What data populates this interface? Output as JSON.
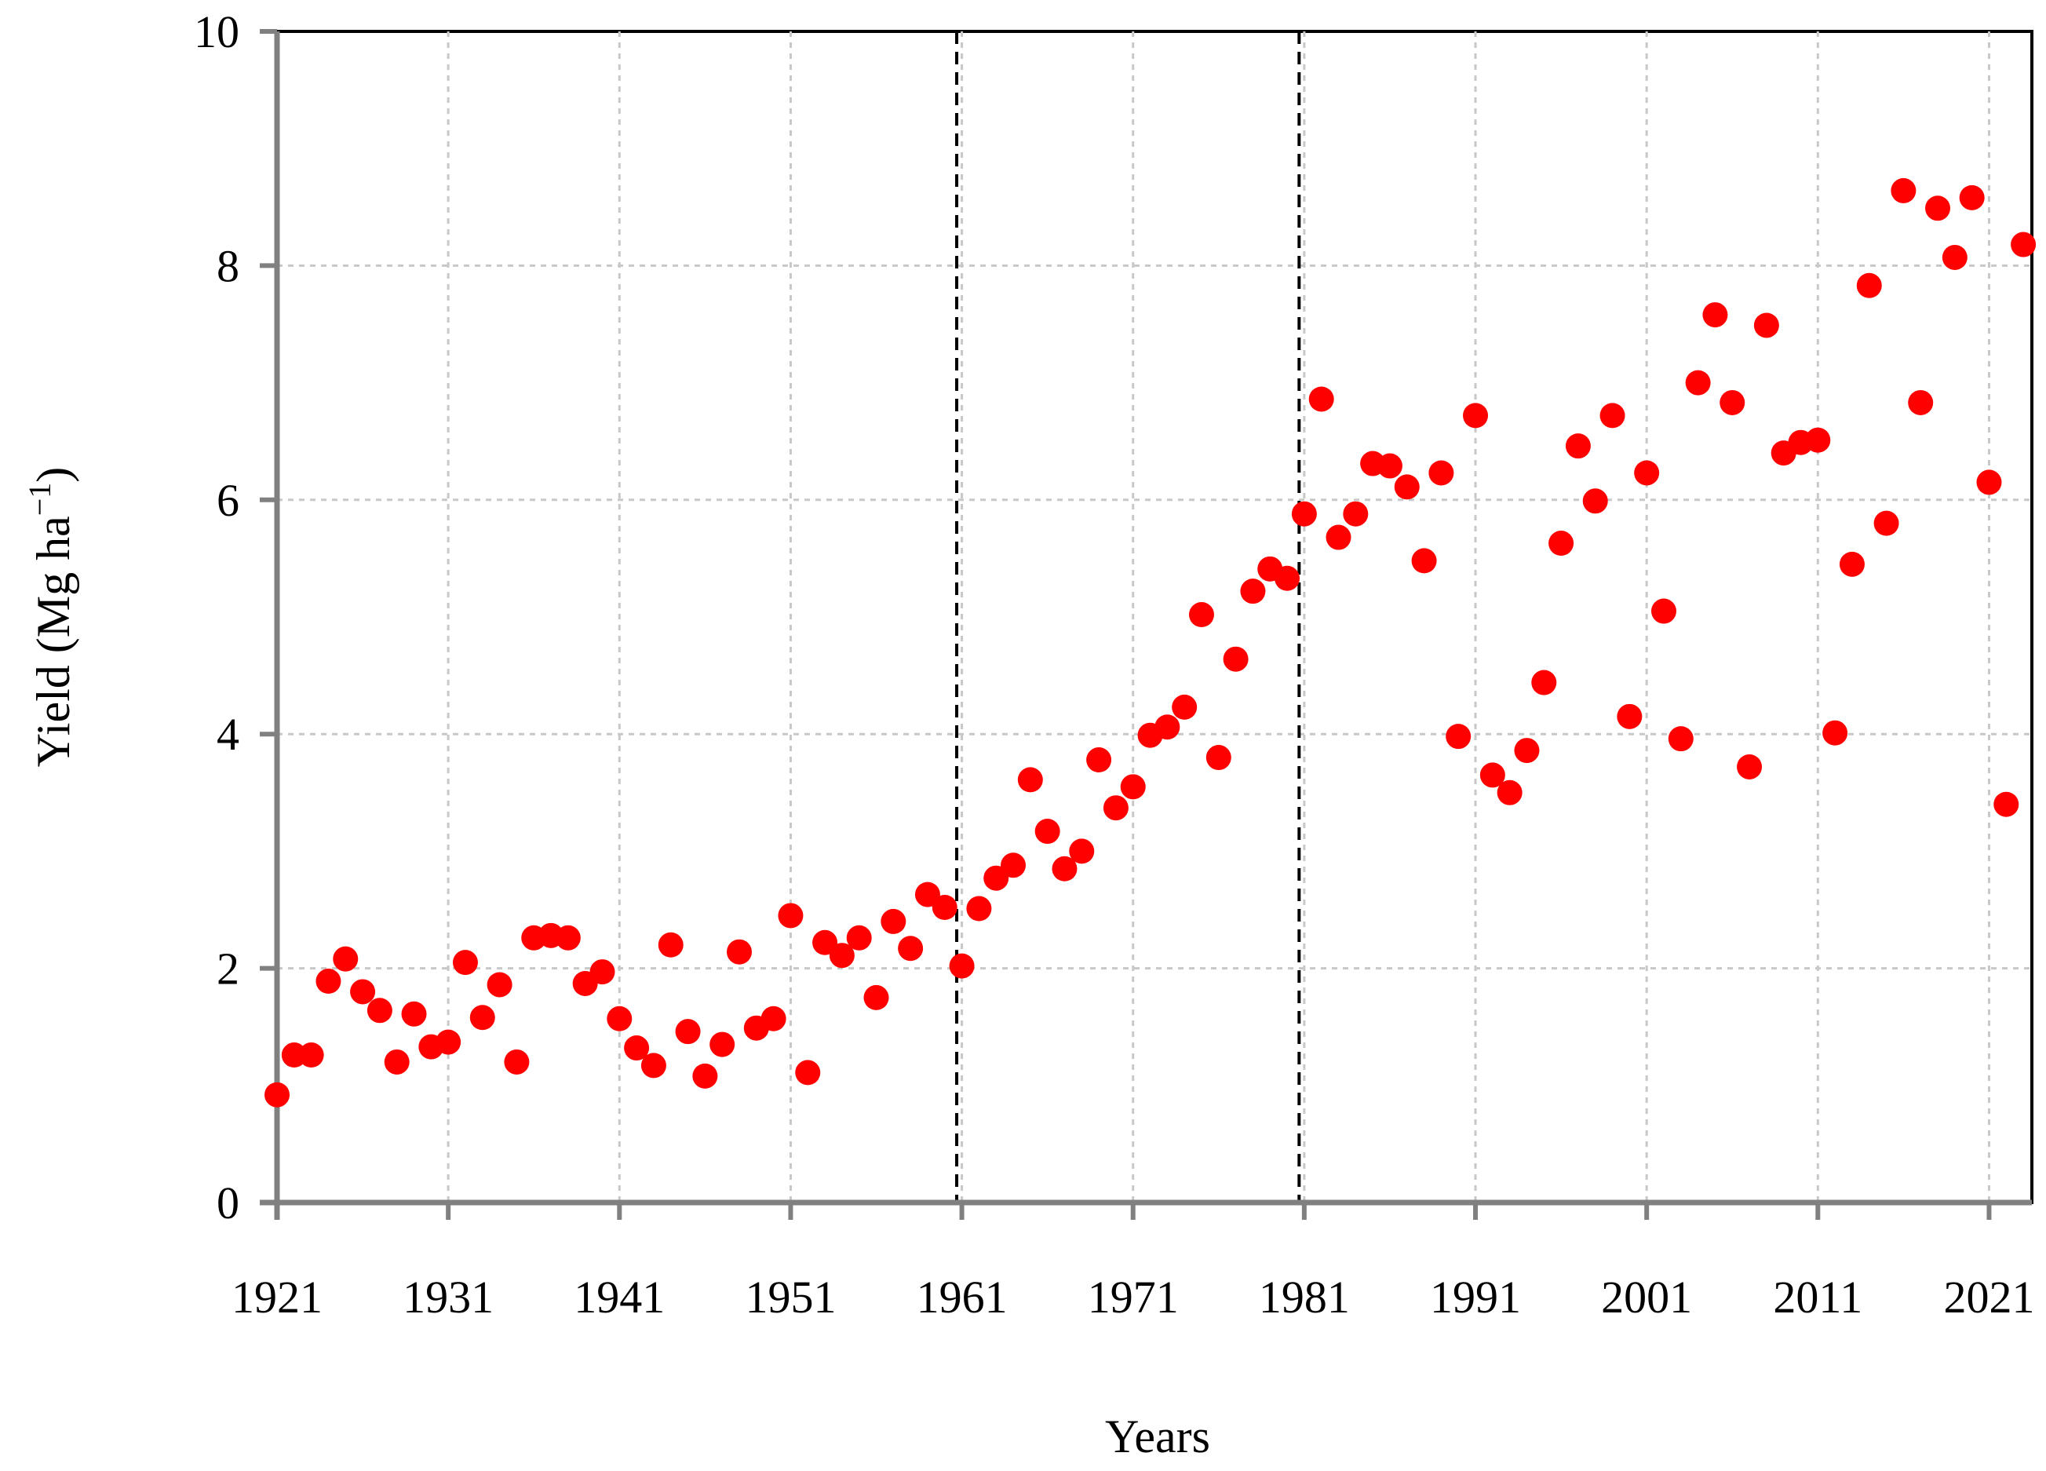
{
  "chart_data": {
    "type": "scatter",
    "title": "",
    "xlabel": "Years",
    "ylabel": "Yield (Mg ha",
    "ylabel_superscript": "−1",
    "ylabel_close": ")",
    "xlim": [
      1921,
      2023.5
    ],
    "ylim": [
      0,
      10
    ],
    "x_ticks": [
      1921,
      1931,
      1941,
      1951,
      1961,
      1971,
      1981,
      1991,
      2001,
      2011,
      2021
    ],
    "y_ticks": [
      0,
      2,
      4,
      6,
      8,
      10
    ],
    "grid": true,
    "vertical_reference_lines": [
      1960.7,
      1980.7
    ],
    "marker_color": "#ff0000",
    "series": [
      {
        "x": [
          1921,
          1922,
          1923,
          1924,
          1925,
          1926,
          1927,
          1928,
          1929,
          1930,
          1931,
          1932,
          1933,
          1934,
          1935,
          1936,
          1937,
          1938,
          1939,
          1940,
          1941,
          1942,
          1943,
          1944,
          1945,
          1946,
          1947,
          1948,
          1949,
          1950,
          1951,
          1952,
          1953,
          1954,
          1955,
          1956,
          1957,
          1958,
          1959,
          1960,
          1961,
          1962,
          1963,
          1964,
          1965,
          1966,
          1967,
          1968,
          1969,
          1970,
          1971,
          1972,
          1973,
          1974,
          1975,
          1976,
          1977,
          1978,
          1979,
          1980,
          1981,
          1982,
          1983,
          1984,
          1985,
          1986,
          1987,
          1988,
          1989,
          1990,
          1991,
          1992,
          1993,
          1994,
          1995,
          1996,
          1997,
          1998,
          1999,
          2000,
          2001,
          2002,
          2003,
          2004,
          2005,
          2006,
          2007,
          2008,
          2009,
          2010,
          2011,
          2012,
          2013,
          2014,
          2015,
          2016,
          2017,
          2018,
          2019,
          2020,
          2021,
          2022,
          2023
        ],
        "y": [
          0.92,
          1.26,
          1.26,
          1.89,
          2.08,
          1.8,
          1.64,
          1.2,
          1.61,
          1.33,
          1.37,
          2.05,
          1.58,
          1.86,
          1.2,
          2.26,
          2.28,
          2.26,
          1.87,
          1.97,
          1.57,
          1.32,
          1.17,
          2.2,
          1.46,
          1.08,
          1.35,
          2.14,
          1.49,
          1.57,
          2.45,
          1.11,
          2.22,
          2.11,
          2.26,
          1.75,
          2.4,
          2.17,
          2.63,
          2.52,
          2.02,
          2.51,
          2.77,
          2.88,
          3.61,
          3.17,
          2.85,
          3.0,
          3.78,
          3.37,
          3.55,
          3.99,
          4.06,
          4.23,
          5.02,
          3.8,
          4.64,
          5.22,
          5.41,
          5.33,
          5.88,
          6.86,
          5.68,
          5.88,
          6.31,
          6.29,
          6.11,
          5.48,
          6.23,
          3.98,
          6.72,
          3.65,
          3.5,
          3.86,
          4.44,
          5.63,
          6.46,
          5.99,
          6.72,
          4.15,
          6.23,
          5.05,
          3.96,
          7.0,
          7.58,
          6.83,
          3.72,
          7.49,
          6.4,
          6.49,
          6.51,
          4.01,
          5.45,
          7.83,
          5.8,
          8.64,
          6.83,
          8.49,
          8.07,
          8.58,
          6.15,
          3.4,
          8.18
        ]
      }
    ]
  }
}
